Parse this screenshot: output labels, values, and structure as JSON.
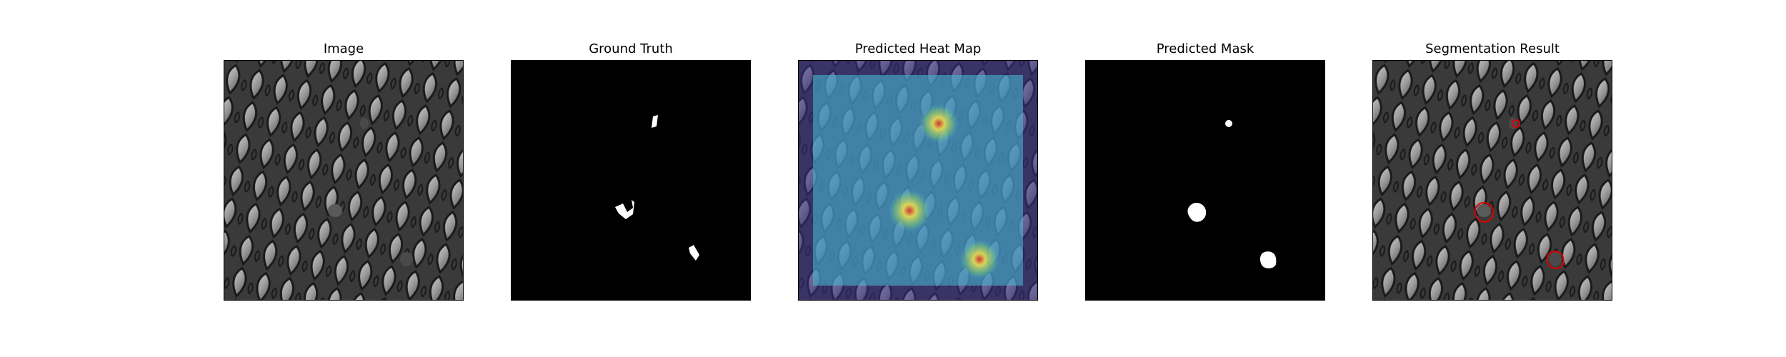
{
  "panels": [
    {
      "id": "image",
      "title": "Image"
    },
    {
      "id": "ground-truth",
      "title": "Ground Truth"
    },
    {
      "id": "heatmap",
      "title": "Predicted Heat Map"
    },
    {
      "id": "mask",
      "title": "Predicted Mask"
    },
    {
      "id": "segmentation",
      "title": "Segmentation Result"
    }
  ],
  "colors": {
    "background": "#ffffff",
    "mask_background": "#000000",
    "mask_foreground": "#ffffff",
    "contour": "#e00000",
    "heatmap_low": "#3b2f8a",
    "heatmap_mid": "#46b5d0",
    "heatmap_high": "#f4e24a",
    "heatmap_peak": "#d32f2f"
  }
}
